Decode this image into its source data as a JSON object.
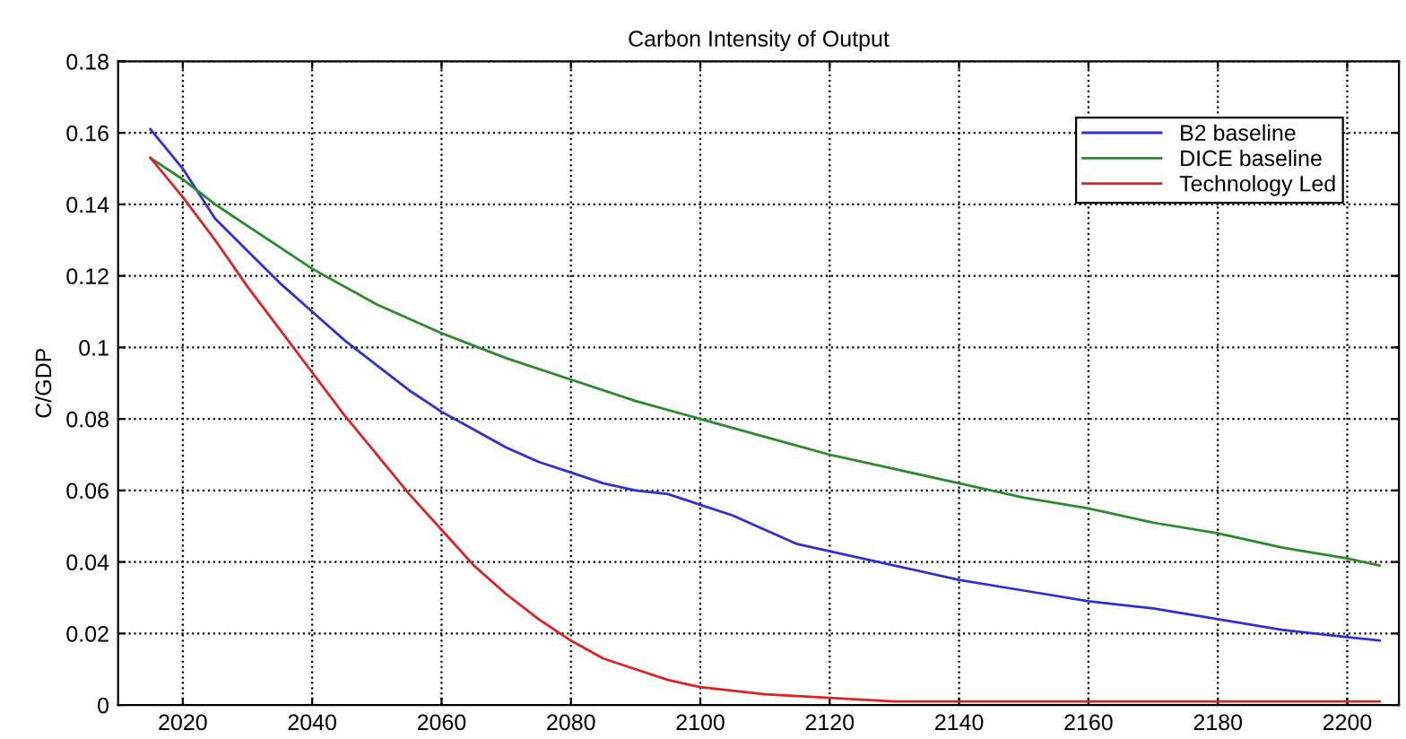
{
  "chart_data": {
    "type": "line",
    "title": "Carbon Intensity of Output",
    "ylabel": "C/GDP",
    "xlim": [
      2010,
      2208
    ],
    "xticks": [
      2020,
      2040,
      2060,
      2080,
      2100,
      2120,
      2140,
      2160,
      2180,
      2200
    ],
    "ylim": [
      0,
      0.18
    ],
    "yticks": [
      0,
      0.02,
      0.04,
      0.06,
      0.08,
      0.1,
      0.12,
      0.14,
      0.16,
      0.18
    ],
    "grid": true,
    "legend": "top right",
    "line_style": "solid",
    "series": [
      {
        "name": "B2 baseline",
        "color": "#3030d0",
        "x": [
          2015,
          2020,
          2025,
          2030,
          2035,
          2040,
          2045,
          2050,
          2055,
          2060,
          2065,
          2070,
          2075,
          2080,
          2085,
          2090,
          2095,
          2100,
          2105,
          2110,
          2115,
          2120,
          2130,
          2140,
          2150,
          2160,
          2170,
          2180,
          2190,
          2200,
          2205
        ],
        "values": [
          0.161,
          0.15,
          0.136,
          0.127,
          0.118,
          0.11,
          0.102,
          0.095,
          0.088,
          0.082,
          0.077,
          0.072,
          0.068,
          0.065,
          0.062,
          0.06,
          0.059,
          0.056,
          0.053,
          0.049,
          0.045,
          0.043,
          0.039,
          0.035,
          0.032,
          0.029,
          0.027,
          0.024,
          0.021,
          0.019,
          0.018
        ]
      },
      {
        "name": "DICE baseline",
        "color": "#2a8a2a",
        "x": [
          2015,
          2020,
          2025,
          2030,
          2040,
          2050,
          2060,
          2070,
          2080,
          2090,
          2100,
          2110,
          2120,
          2130,
          2140,
          2150,
          2160,
          2170,
          2180,
          2190,
          2200,
          2205
        ],
        "values": [
          0.153,
          0.147,
          0.14,
          0.134,
          0.122,
          0.112,
          0.104,
          0.097,
          0.091,
          0.085,
          0.08,
          0.075,
          0.07,
          0.066,
          0.062,
          0.058,
          0.055,
          0.051,
          0.048,
          0.044,
          0.041,
          0.039
        ]
      },
      {
        "name": "Technology Led",
        "color": "#dd2222",
        "x": [
          2015,
          2020,
          2025,
          2030,
          2035,
          2040,
          2045,
          2050,
          2055,
          2060,
          2065,
          2070,
          2075,
          2080,
          2085,
          2090,
          2095,
          2100,
          2110,
          2120,
          2130,
          2150,
          2205
        ],
        "values": [
          0.153,
          0.142,
          0.13,
          0.117,
          0.105,
          0.093,
          0.081,
          0.07,
          0.059,
          0.049,
          0.039,
          0.031,
          0.024,
          0.018,
          0.013,
          0.01,
          0.007,
          0.005,
          0.003,
          0.002,
          0.001,
          0.001,
          0.001
        ]
      }
    ]
  }
}
